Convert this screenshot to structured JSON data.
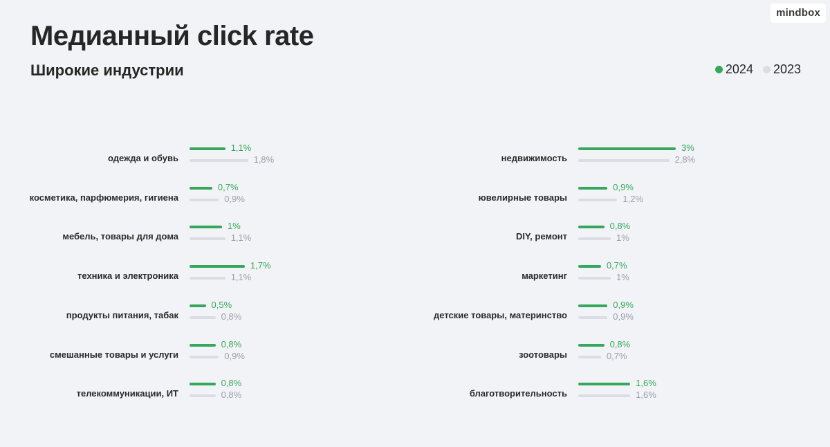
{
  "logo": "mindbox",
  "title": "Медианный click rate",
  "subtitle": "Широкие индустрии",
  "legend": [
    {
      "label": "2024",
      "color": "#35a85b"
    },
    {
      "label": "2023",
      "color": "#dcdde2"
    }
  ],
  "chart_data": {
    "type": "bar",
    "orientation": "horizontal",
    "title": "Медианный click rate",
    "subtitle": "Широкие индустрии",
    "legend_position": "top-right",
    "grid": false,
    "series": [
      {
        "name": "2024",
        "color": "#35a85b"
      },
      {
        "name": "2023",
        "color": "#dcdde2"
      }
    ],
    "columns": [
      {
        "categories": [
          {
            "label": "одежда и обувь",
            "v2024": 1.1,
            "v2023": 1.8,
            "l2024": "1,1%",
            "l2023": "1,8%"
          },
          {
            "label": "косметика, парфюмерия, гигиена",
            "v2024": 0.7,
            "v2023": 0.9,
            "l2024": "0,7%",
            "l2023": "0,9%"
          },
          {
            "label": "мебель, товары для дома",
            "v2024": 1.0,
            "v2023": 1.1,
            "l2024": "1%",
            "l2023": "1,1%"
          },
          {
            "label": "техника и электроника",
            "v2024": 1.7,
            "v2023": 1.1,
            "l2024": "1,7%",
            "l2023": "1,1%"
          },
          {
            "label": "продукты питания, табак",
            "v2024": 0.5,
            "v2023": 0.8,
            "l2024": "0,5%",
            "l2023": "0,8%"
          },
          {
            "label": "смешанные товары и услуги",
            "v2024": 0.8,
            "v2023": 0.9,
            "l2024": "0,8%",
            "l2023": "0,9%"
          },
          {
            "label": "телекоммуникации, ИТ",
            "v2024": 0.8,
            "v2023": 0.8,
            "l2024": "0,8%",
            "l2023": "0,8%"
          }
        ]
      },
      {
        "categories": [
          {
            "label": "недвижимость",
            "v2024": 3.0,
            "v2023": 2.8,
            "l2024": "3%",
            "l2023": "2,8%"
          },
          {
            "label": "ювелирные товары",
            "v2024": 0.9,
            "v2023": 1.2,
            "l2024": "0,9%",
            "l2023": "1,2%"
          },
          {
            "label": "DIY, ремонт",
            "v2024": 0.8,
            "v2023": 1.0,
            "l2024": "0,8%",
            "l2023": "1%"
          },
          {
            "label": "маркетинг",
            "v2024": 0.7,
            "v2023": 1.0,
            "l2024": "0,7%",
            "l2023": "1%"
          },
          {
            "label": "детские товары, материнство",
            "v2024": 0.9,
            "v2023": 0.9,
            "l2024": "0,9%",
            "l2023": "0,9%"
          },
          {
            "label": "зоотовары",
            "v2024": 0.8,
            "v2023": 0.7,
            "l2024": "0,8%",
            "l2023": "0,7%"
          },
          {
            "label": "благотворительность",
            "v2024": 1.6,
            "v2023": 1.6,
            "l2024": "1,6%",
            "l2023": "1,6%"
          }
        ]
      }
    ]
  }
}
